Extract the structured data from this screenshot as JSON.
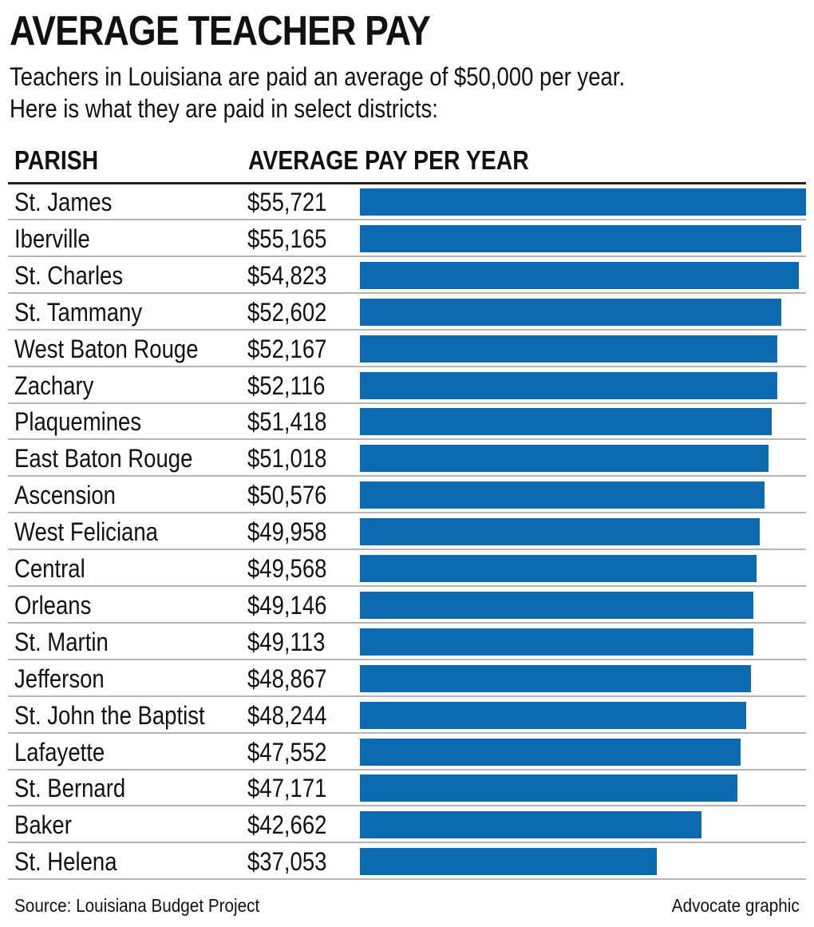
{
  "title": "AVERAGE TEACHER PAY",
  "subtitle": [
    "Teachers in Louisiana are paid an average of $50,000 per year.",
    "Here is what they are paid in select districts:"
  ],
  "columns": {
    "parish": "PARISH",
    "pay": "AVERAGE PAY PER YEAR"
  },
  "colors": {
    "bar": "#0b6ab0",
    "rule": "#b5b5b5"
  },
  "chart_data": {
    "type": "bar",
    "orientation": "horizontal",
    "title": "AVERAGE TEACHER PAY",
    "categories": [
      "St. James",
      "Iberville",
      "St. Charles",
      "St. Tammany",
      "West Baton Rouge",
      "Zachary",
      "Plaquemines",
      "East Baton Rouge",
      "Ascension",
      "West Feliciana",
      "Central",
      "Orleans",
      "St. Martin",
      "Jefferson",
      "St. John the Baptist",
      "Lafayette",
      "St. Bernard",
      "Baker",
      "St. Helena"
    ],
    "values": [
      55721,
      55165,
      54823,
      52602,
      52167,
      52116,
      51418,
      51018,
      50576,
      49958,
      49568,
      49146,
      49113,
      48867,
      48244,
      47552,
      47171,
      42662,
      37053
    ],
    "labels": [
      "$55,721",
      "$55,165",
      "$54,823",
      "$52,602",
      "$52,167",
      "$52,116",
      "$51,418",
      "$51,018",
      "$50,576",
      "$49,958",
      "$49,568",
      "$49,146",
      "$49,113",
      "$48,867",
      "$48,244",
      "$47,552",
      "$47,171",
      "$42,662",
      "$37,053"
    ],
    "xlim": [
      0,
      55721
    ],
    "grid": false
  },
  "footer": {
    "source": "Source: Louisiana Budget Project",
    "credit": "Advocate graphic"
  }
}
